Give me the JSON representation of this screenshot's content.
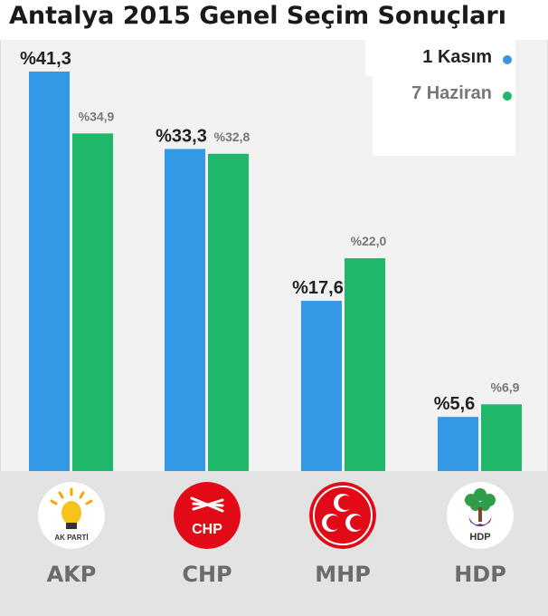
{
  "colors": {
    "series1": "#3399e6",
    "series2": "#1fb86b",
    "plot_bg": "#f2f2f2",
    "logo_strip": "#e3e3e3"
  },
  "chart_data": {
    "type": "bar",
    "title": "Antalya 2015 Genel Seçim Sonuçları",
    "categories": [
      "AKP",
      "CHP",
      "MHP",
      "HDP"
    ],
    "series": [
      {
        "name": "1 Kasım",
        "values": [
          41.3,
          33.3,
          17.6,
          5.6
        ],
        "labels": [
          "%41,3",
          "%33,3",
          "%17,6",
          "%5,6"
        ]
      },
      {
        "name": "7 Haziran",
        "values": [
          34.9,
          32.8,
          22.0,
          6.9
        ],
        "labels": [
          "%34,9",
          "%32,8",
          "%22,0",
          "%6,9"
        ]
      }
    ],
    "ylim": [
      0,
      45
    ],
    "legend_position": "top-right",
    "grid": false,
    "logos": [
      {
        "party": "AKP",
        "icon": "lightbulb-icon",
        "text": "AK PARTİ"
      },
      {
        "party": "CHP",
        "icon": "six-arrows-icon",
        "text": "CHP"
      },
      {
        "party": "MHP",
        "icon": "three-crescents-icon",
        "text": ""
      },
      {
        "party": "HDP",
        "icon": "tree-hands-icon",
        "text": "HDP"
      }
    ]
  }
}
